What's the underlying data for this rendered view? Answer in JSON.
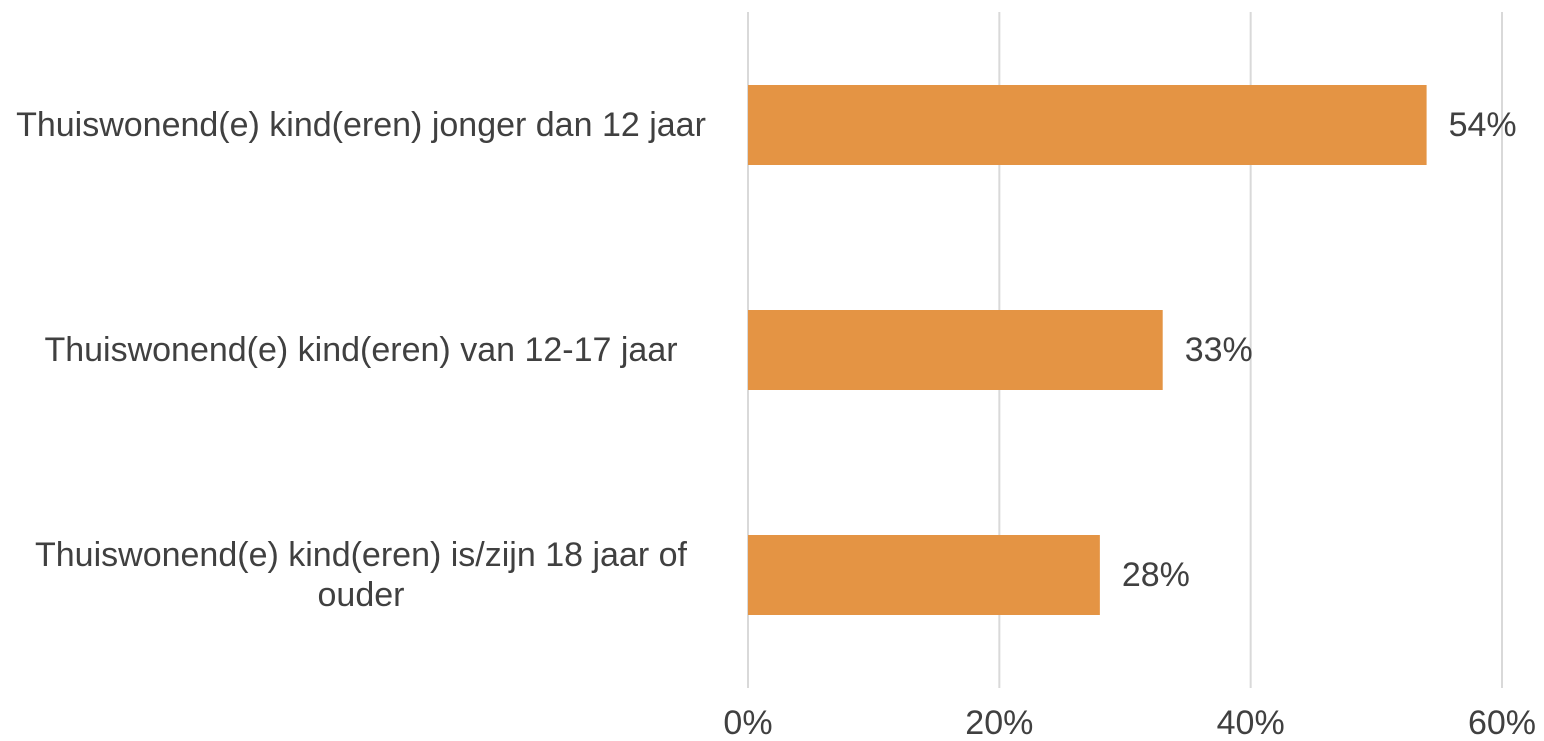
{
  "chart_data": {
    "type": "bar",
    "orientation": "horizontal",
    "categories": [
      "Thuiswonend(e) kind(eren) jonger dan 12 jaar",
      "Thuiswonend(e) kind(eren) van 12-17 jaar",
      "Thuiswonend(e) kind(eren) is/zijn 18 jaar of ouder"
    ],
    "values": [
      54,
      33,
      28
    ],
    "value_labels": [
      "54%",
      "33%",
      "28%"
    ],
    "color": "#e49444",
    "xlim": [
      0,
      60
    ],
    "xticks": [
      {
        "value": 0,
        "label": "0%"
      },
      {
        "value": 20,
        "label": "20%"
      },
      {
        "value": 40,
        "label": "40%"
      },
      {
        "value": 60,
        "label": "60%"
      }
    ],
    "grid": true
  }
}
